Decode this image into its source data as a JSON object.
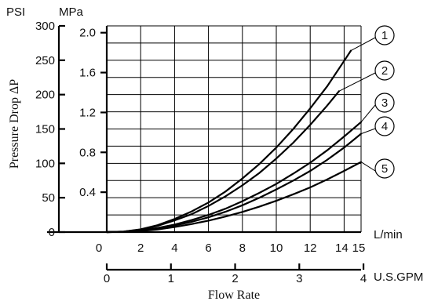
{
  "chart_data": {
    "type": "line",
    "title": "",
    "xlabel": "Flow Rate",
    "ylabel": "Pressure Drop ΔP",
    "axes": {
      "psi": {
        "unit": "PSI",
        "ticks": [
          "0",
          "50",
          "100",
          "150",
          "200",
          "250",
          "300"
        ],
        "range": [
          0,
          300
        ]
      },
      "mpa": {
        "unit": "MPa",
        "ticks": [
          "0.4",
          "0.8",
          "1.2",
          "1.6",
          "2.0"
        ],
        "values": [
          0.4,
          0.8,
          1.2,
          1.6,
          2.0
        ]
      },
      "lmin": {
        "unit": "L/min",
        "ticks": [
          "0",
          "2",
          "4",
          "6",
          "8",
          "10",
          "12",
          "14",
          "15"
        ],
        "values": [
          0,
          2,
          4,
          6,
          8,
          10,
          12,
          14,
          15
        ],
        "range": [
          0,
          15
        ]
      },
      "gpm": {
        "unit": "U.S.GPM",
        "ticks": [
          "0",
          "1",
          "2",
          "3",
          "4"
        ],
        "values": [
          0,
          1,
          2,
          3,
          4
        ]
      }
    },
    "grid": true,
    "series": [
      {
        "name": "1",
        "x_lmin": [
          0,
          1,
          2,
          3,
          4,
          5,
          6,
          7,
          8,
          9,
          10,
          11,
          12,
          13,
          14,
          14.4
        ],
        "y_psi": [
          0,
          0.8,
          4,
          10,
          19,
          30,
          43,
          59,
          78,
          99,
          123,
          150,
          180,
          212,
          249,
          264
        ]
      },
      {
        "name": "2",
        "x_lmin": [
          0,
          1,
          2,
          3,
          4,
          5,
          6,
          7,
          8,
          9,
          10,
          11,
          12,
          13,
          13.7
        ],
        "y_psi": [
          0,
          0.7,
          3.5,
          9,
          17,
          26,
          38,
          52,
          68,
          86,
          107,
          130,
          156,
          184,
          205
        ]
      },
      {
        "name": "3",
        "x_lmin": [
          0,
          1,
          2,
          3,
          4,
          5,
          6,
          7,
          8,
          9,
          10,
          11,
          12,
          13,
          14,
          15
        ],
        "y_psi": [
          0,
          0.5,
          2.5,
          6,
          11,
          17.5,
          25,
          34,
          45,
          57,
          70,
          85,
          101,
          119,
          139,
          160
        ]
      },
      {
        "name": "4",
        "x_lmin": [
          0,
          1,
          2,
          3,
          4,
          5,
          6,
          7,
          8,
          9,
          10,
          11,
          12,
          13,
          14,
          15
        ],
        "y_psi": [
          0,
          0.4,
          2,
          5,
          9.5,
          15,
          21.5,
          29.5,
          39,
          50,
          62,
          75,
          89,
          105,
          123,
          143
        ]
      },
      {
        "name": "5",
        "x_lmin": [
          0,
          1,
          2,
          3,
          4,
          5,
          6,
          7,
          8,
          9,
          10,
          11,
          12,
          13,
          14,
          15
        ],
        "y_psi": [
          0,
          0.3,
          1.5,
          3.8,
          7.3,
          11.6,
          16.7,
          22.6,
          29.3,
          37,
          45.5,
          55,
          65,
          76.5,
          89,
          102
        ]
      }
    ]
  }
}
